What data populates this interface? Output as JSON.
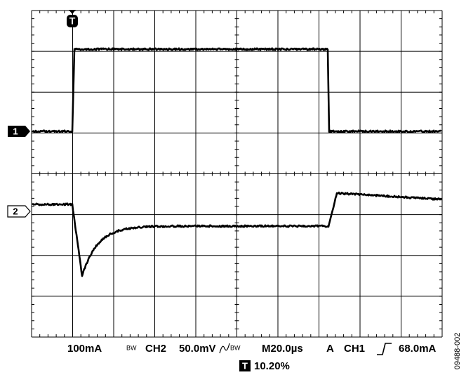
{
  "trigger_marker": "T",
  "channel_markers": [
    "1",
    "2"
  ],
  "status": {
    "ch1_scale": "100mA",
    "bw1": "BW",
    "ch2": "CH2",
    "ch2_scale": "50.0mV",
    "bw2": "BW",
    "timebase": "M20.0µs",
    "trigger_mode": "A",
    "trigger_source": "CH1",
    "trigger_level": "68.0mA",
    "trigger_position": "10.20%"
  },
  "figure_id": "09488-002"
}
